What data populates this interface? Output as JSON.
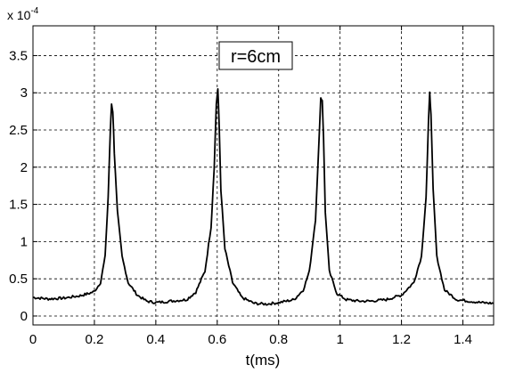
{
  "chart_data": {
    "type": "line",
    "xlabel": "t(ms)",
    "ylabel": "",
    "y_exponent_base": "x 10",
    "y_exponent_power": "-4",
    "xlim": [
      0,
      1.5
    ],
    "ylim": [
      -0.12,
      3.9
    ],
    "x_ticks": [
      0,
      0.2,
      0.4,
      0.6,
      0.8,
      1.0,
      1.2,
      1.4
    ],
    "x_tick_labels": [
      "0",
      "0.2",
      "0.4",
      "0.6",
      "0.8",
      "1",
      "1.2",
      "1.4"
    ],
    "y_ticks": [
      0,
      0.5,
      1,
      1.5,
      2,
      2.5,
      3,
      3.5
    ],
    "y_tick_labels": [
      "0",
      "0.5",
      "1",
      "1.5",
      "2",
      "2.5",
      "3",
      "3.5"
    ],
    "grid": true,
    "grid_style": "dashed",
    "annotation": "r=6cm",
    "annotation_position": "top-center",
    "line_color": "#000000",
    "series": [
      {
        "x": [
          0,
          0.05,
          0.1,
          0.15,
          0.18,
          0.2,
          0.22,
          0.235,
          0.245,
          0.252,
          0.256,
          0.26,
          0.265,
          0.275,
          0.29,
          0.31,
          0.34,
          0.37,
          0.4,
          0.45,
          0.5,
          0.53,
          0.56,
          0.58,
          0.59,
          0.597,
          0.602,
          0.606,
          0.612,
          0.625,
          0.65,
          0.68,
          0.72,
          0.76,
          0.8,
          0.85,
          0.88,
          0.9,
          0.92,
          0.93,
          0.937,
          0.942,
          0.946,
          0.952,
          0.965,
          0.99,
          1.02,
          1.06,
          1.1,
          1.15,
          1.2,
          1.24,
          1.265,
          1.28,
          1.288,
          1.292,
          1.296,
          1.303,
          1.315,
          1.34,
          1.38,
          1.42,
          1.46,
          1.5
        ],
        "y": [
          0.25,
          0.23,
          0.24,
          0.27,
          0.3,
          0.33,
          0.45,
          0.8,
          1.6,
          2.5,
          2.85,
          2.75,
          2.2,
          1.4,
          0.8,
          0.45,
          0.28,
          0.2,
          0.18,
          0.2,
          0.22,
          0.32,
          0.6,
          1.2,
          2.0,
          2.85,
          3.05,
          2.6,
          1.7,
          0.9,
          0.45,
          0.25,
          0.17,
          0.16,
          0.18,
          0.22,
          0.35,
          0.6,
          1.3,
          2.2,
          2.93,
          2.9,
          2.4,
          1.4,
          0.6,
          0.3,
          0.22,
          0.2,
          0.2,
          0.22,
          0.28,
          0.45,
          0.8,
          1.6,
          2.6,
          3.02,
          2.7,
          1.7,
          0.8,
          0.35,
          0.22,
          0.2,
          0.18,
          0.17
        ]
      }
    ]
  }
}
